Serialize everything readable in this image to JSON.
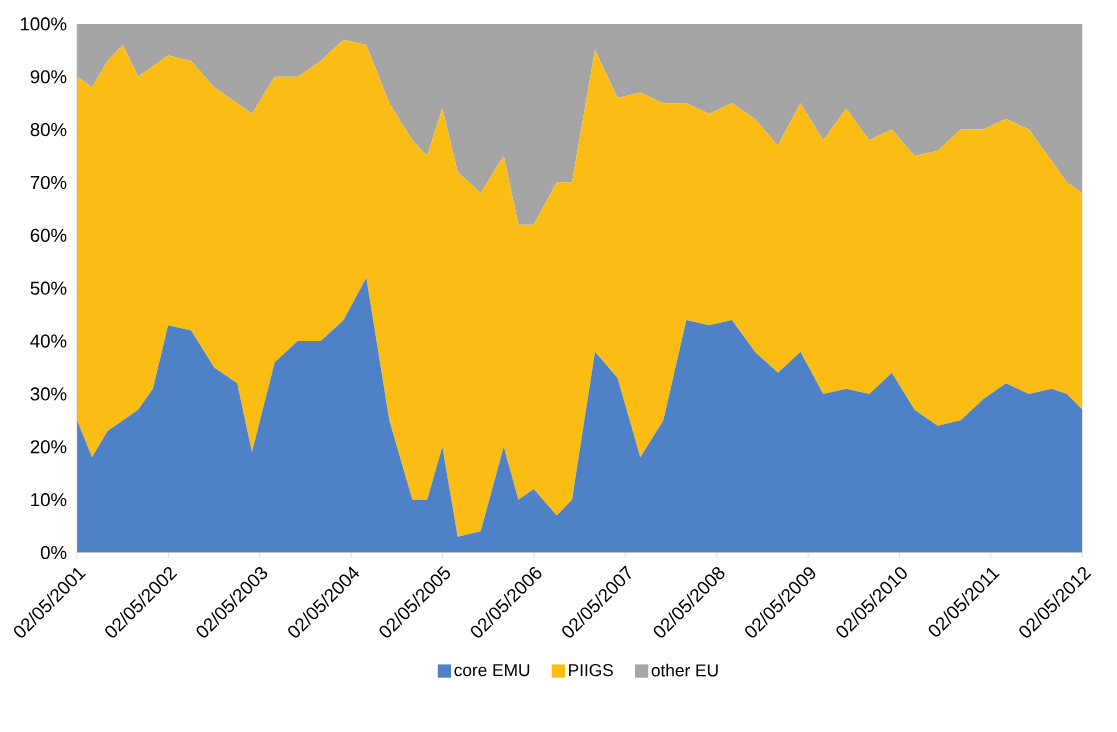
{
  "chart_data": {
    "type": "area",
    "stacked": true,
    "x": [
      "2001-05-02",
      "2001-07",
      "2001-09",
      "2001-11",
      "2002-01",
      "2002-03",
      "2002-05",
      "2002-08",
      "2002-11",
      "2003-02",
      "2003-04",
      "2003-07",
      "2003-10",
      "2004-01",
      "2004-04",
      "2004-07",
      "2004-10",
      "2005-01",
      "2005-03",
      "2005-05",
      "2005-07",
      "2005-10",
      "2006-01",
      "2006-03",
      "2006-05",
      "2006-08",
      "2006-10",
      "2007-01",
      "2007-04",
      "2007-07",
      "2007-10",
      "2008-01",
      "2008-04",
      "2008-07",
      "2008-10",
      "2009-01",
      "2009-04",
      "2009-07",
      "2009-10",
      "2010-01",
      "2010-04",
      "2010-07",
      "2010-10",
      "2011-01",
      "2011-04",
      "2011-07",
      "2011-10",
      "2012-01",
      "2012-03",
      "2012-05-02"
    ],
    "series": [
      {
        "name": "core EMU",
        "color": "#4f81c6",
        "values": [
          25,
          18,
          23,
          25,
          27,
          31,
          43,
          42,
          35,
          32,
          19,
          36,
          40,
          40,
          44,
          52,
          25,
          10,
          10,
          20,
          3,
          4,
          20,
          10,
          12,
          7,
          10,
          38,
          33,
          18,
          25,
          44,
          43,
          44,
          38,
          34,
          38,
          30,
          31,
          30,
          34,
          27,
          24,
          25,
          29,
          32,
          30,
          31,
          30,
          27
        ]
      },
      {
        "name": "PIIGS",
        "color": "#fbbd13",
        "values": [
          65,
          70,
          70,
          71,
          63,
          61,
          51,
          51,
          53,
          53,
          64,
          54,
          50,
          53,
          53,
          44,
          60,
          68,
          65,
          64,
          69,
          64,
          55,
          52,
          50,
          63,
          60,
          57,
          53,
          69,
          60,
          41,
          40,
          41,
          44,
          43,
          47,
          48,
          53,
          48,
          46,
          48,
          52,
          55,
          51,
          50,
          50,
          43,
          40,
          41
        ]
      },
      {
        "name": "other EU",
        "color": "#a5a5a5",
        "values": [
          10,
          12,
          7,
          4,
          10,
          8,
          6,
          7,
          12,
          15,
          17,
          10,
          10,
          7,
          3,
          4,
          15,
          22,
          25,
          16,
          28,
          32,
          25,
          38,
          38,
          30,
          30,
          5,
          14,
          13,
          15,
          15,
          17,
          15,
          18,
          23,
          15,
          22,
          16,
          22,
          20,
          25,
          24,
          20,
          20,
          18,
          20,
          26,
          30,
          32
        ]
      }
    ],
    "xlim": [
      "2001-05-02",
      "2012-05-02"
    ],
    "xticks": [
      {
        "value": "2001-05-02",
        "label": "02/05/2001"
      },
      {
        "value": "2002-05-02",
        "label": "02/05/2002"
      },
      {
        "value": "2003-05-02",
        "label": "02/05/2003"
      },
      {
        "value": "2004-05-02",
        "label": "02/05/2004"
      },
      {
        "value": "2005-05-02",
        "label": "02/05/2005"
      },
      {
        "value": "2006-05-02",
        "label": "02/05/2006"
      },
      {
        "value": "2007-05-02",
        "label": "02/05/2007"
      },
      {
        "value": "2008-05-02",
        "label": "02/05/2008"
      },
      {
        "value": "2009-05-02",
        "label": "02/05/2009"
      },
      {
        "value": "2010-05-02",
        "label": "02/05/2010"
      },
      {
        "value": "2011-05-02",
        "label": "02/05/2011"
      },
      {
        "value": "2012-05-02",
        "label": "02/05/2012"
      }
    ],
    "ylim": [
      0,
      100
    ],
    "yticks": [
      {
        "value": 0,
        "label": "0%"
      },
      {
        "value": 10,
        "label": "10%"
      },
      {
        "value": 20,
        "label": "20%"
      },
      {
        "value": 30,
        "label": "30%"
      },
      {
        "value": 40,
        "label": "40%"
      },
      {
        "value": 50,
        "label": "50%"
      },
      {
        "value": 60,
        "label": "60%"
      },
      {
        "value": 70,
        "label": "70%"
      },
      {
        "value": 80,
        "label": "80%"
      },
      {
        "value": 90,
        "label": "90%"
      },
      {
        "value": 100,
        "label": "100%"
      }
    ],
    "legend": "bottom"
  }
}
